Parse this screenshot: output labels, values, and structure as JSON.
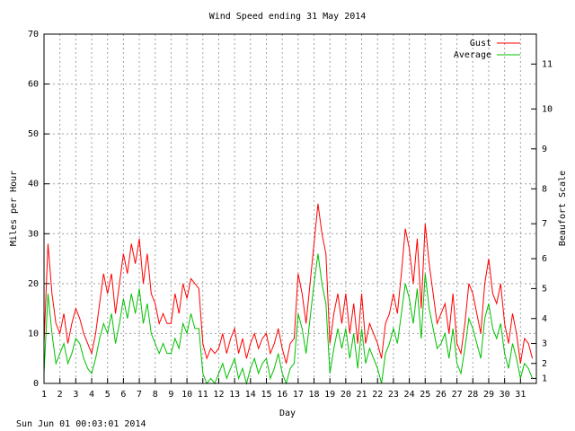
{
  "chart_data": {
    "type": "line",
    "title": "Wind Speed ending 31 May 2014",
    "x_label": "Day",
    "y_label": "Miles per Hour",
    "y2_label": "Beaufort Scale",
    "timestamp": "Sun Jun 01 00:03:01 2014",
    "legend": "top-right",
    "grid": true,
    "xlim": [
      1,
      32
    ],
    "xticks": [
      1,
      2,
      3,
      4,
      5,
      6,
      7,
      8,
      9,
      10,
      11,
      12,
      13,
      14,
      15,
      16,
      17,
      18,
      19,
      20,
      21,
      22,
      23,
      24,
      25,
      26,
      27,
      28,
      29,
      30,
      31
    ],
    "ylim": [
      0,
      70
    ],
    "yticks": [
      0,
      10,
      20,
      30,
      40,
      50,
      60,
      70
    ],
    "y2lim": [
      0,
      70
    ],
    "y2ticks": [
      1,
      {
        "value": 4,
        "label": "2"
      },
      {
        "value": 8,
        "label": "3"
      },
      {
        "value": 13,
        "label": "4"
      },
      {
        "value": 19,
        "label": "5"
      },
      {
        "value": 25,
        "label": "6"
      },
      {
        "value": 32,
        "label": "7"
      },
      {
        "value": 39,
        "label": "8"
      },
      {
        "value": 47,
        "label": "9"
      },
      {
        "value": 55,
        "label": "10"
      },
      {
        "value": 64,
        "label": "11"
      }
    ],
    "x": [
      1,
      1.25,
      1.5,
      1.75,
      2,
      2.25,
      2.5,
      2.75,
      3,
      3.25,
      3.5,
      3.75,
      4,
      4.25,
      4.5,
      4.75,
      5,
      5.25,
      5.5,
      5.75,
      6,
      6.25,
      6.5,
      6.75,
      7,
      7.25,
      7.5,
      7.75,
      8,
      8.25,
      8.5,
      8.75,
      9,
      9.25,
      9.5,
      9.75,
      10,
      10.25,
      10.5,
      10.75,
      11,
      11.25,
      11.5,
      11.75,
      12,
      12.25,
      12.5,
      12.75,
      13,
      13.25,
      13.5,
      13.75,
      14,
      14.25,
      14.5,
      14.75,
      15,
      15.25,
      15.5,
      15.75,
      16,
      16.25,
      16.5,
      16.75,
      17,
      17.25,
      17.5,
      17.75,
      18,
      18.25,
      18.5,
      18.75,
      19,
      19.25,
      19.5,
      19.75,
      20,
      20.25,
      20.5,
      20.75,
      21,
      21.25,
      21.5,
      21.75,
      22,
      22.25,
      22.5,
      22.75,
      23,
      23.25,
      23.5,
      23.75,
      24,
      24.25,
      24.5,
      24.75,
      25,
      25.25,
      25.5,
      25.75,
      26,
      26.25,
      26.5,
      26.75,
      27,
      27.25,
      27.5,
      27.75,
      28,
      28.25,
      28.5,
      28.75,
      29,
      29.25,
      29.5,
      29.75,
      30,
      30.25,
      30.5,
      30.75,
      31,
      31.25,
      31.5,
      31.75
    ],
    "series": [
      {
        "name": "Gust",
        "color": "#ff0000",
        "values": [
          8,
          28,
          18,
          12,
          10,
          14,
          8,
          12,
          15,
          13,
          10,
          8,
          6,
          10,
          16,
          22,
          18,
          22,
          14,
          20,
          26,
          22,
          28,
          24,
          29,
          20,
          26,
          18,
          16,
          12,
          14,
          12,
          12,
          18,
          14,
          20,
          17,
          21,
          20,
          19,
          8,
          5,
          7,
          6,
          7,
          10,
          6,
          9,
          11,
          6,
          9,
          5,
          8,
          10,
          7,
          9,
          10,
          6,
          8,
          11,
          7,
          4,
          8,
          9,
          22,
          18,
          12,
          20,
          28,
          36,
          30,
          26,
          8,
          14,
          18,
          12,
          18,
          10,
          16,
          8,
          18,
          8,
          12,
          10,
          8,
          5,
          12,
          14,
          18,
          14,
          22,
          31,
          27,
          20,
          29,
          15,
          32,
          24,
          18,
          12,
          14,
          16,
          10,
          18,
          8,
          6,
          12,
          20,
          18,
          14,
          10,
          20,
          25,
          18,
          16,
          20,
          12,
          8,
          14,
          10,
          4,
          9,
          8,
          5
        ]
      },
      {
        "name": "Average",
        "color": "#00c000",
        "values": [
          2,
          18,
          10,
          4,
          6,
          8,
          4,
          6,
          9,
          8,
          5,
          3,
          2,
          5,
          9,
          12,
          10,
          14,
          8,
          12,
          17,
          13,
          18,
          14,
          19,
          12,
          16,
          10,
          8,
          6,
          8,
          6,
          6,
          9,
          7,
          12,
          10,
          14,
          11,
          11,
          2,
          0,
          1,
          0,
          2,
          4,
          1,
          3,
          5,
          1,
          3,
          0,
          3,
          5,
          2,
          4,
          5,
          1,
          3,
          6,
          2,
          0,
          3,
          4,
          14,
          11,
          6,
          13,
          20,
          26,
          20,
          16,
          2,
          7,
          11,
          7,
          11,
          5,
          10,
          3,
          11,
          4,
          7,
          5,
          3,
          0,
          6,
          8,
          11,
          8,
          14,
          20,
          17,
          12,
          19,
          9,
          22,
          15,
          11,
          7,
          8,
          10,
          5,
          11,
          4,
          2,
          7,
          13,
          11,
          8,
          5,
          13,
          16,
          11,
          9,
          12,
          6,
          3,
          8,
          5,
          1,
          4,
          3,
          1
        ]
      }
    ]
  }
}
